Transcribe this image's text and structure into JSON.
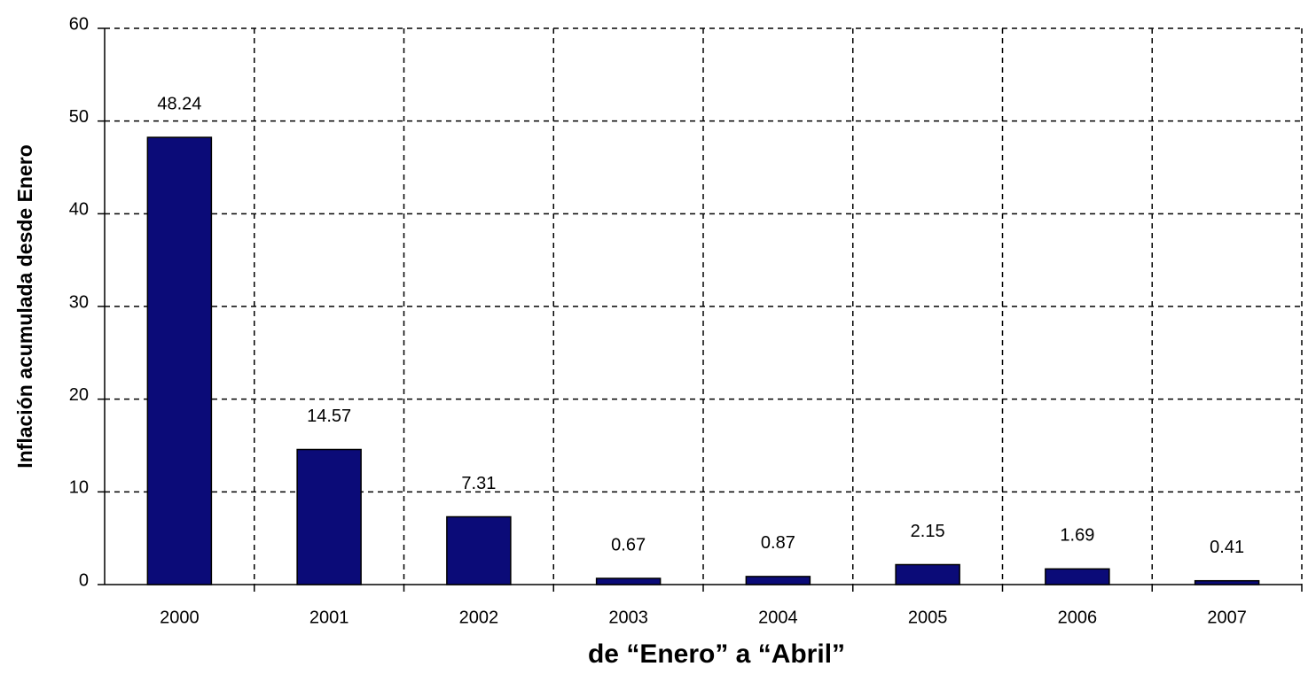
{
  "chart_data": {
    "type": "bar",
    "x_label": "de “Enero” a “Abril”",
    "y_label": "Inflación acumulada desde Enero",
    "categories": [
      "2000",
      "2001",
      "2002",
      "2003",
      "2004",
      "2005",
      "2006",
      "2007"
    ],
    "values": [
      48.24,
      14.57,
      7.31,
      0.67,
      0.87,
      2.15,
      1.69,
      0.41
    ],
    "color": "#0b0b78",
    "ylim": [
      0,
      60
    ],
    "yticks": [
      0,
      10,
      20,
      30,
      40,
      50,
      60
    ],
    "grid": true
  }
}
